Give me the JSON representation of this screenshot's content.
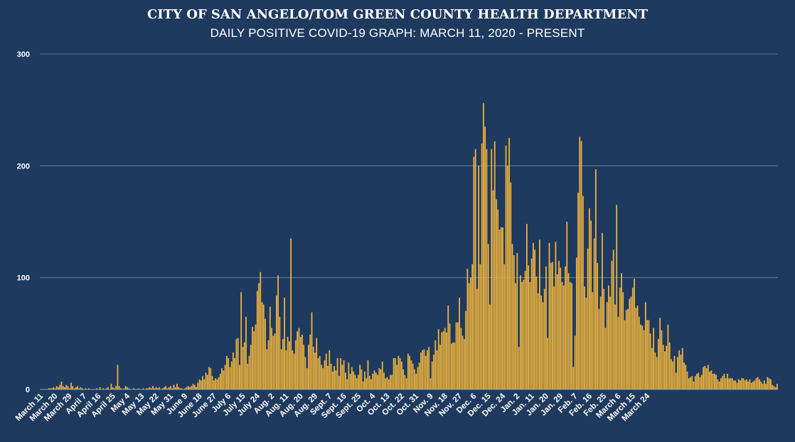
{
  "chart_data": {
    "type": "bar",
    "title": "CITY OF SAN ANGELO/TOM GREEN COUNTY HEALTH DEPARTMENT",
    "subtitle": "DAILY POSITIVE COVID-19 GRAPH: MARCH 11, 2020 - PRESENT",
    "xlabel": "",
    "ylabel": "",
    "ylim": [
      0,
      300
    ],
    "yticks": [
      0,
      100,
      200,
      300
    ],
    "grid": true,
    "legend": "none",
    "bar_color": "#f2b53c",
    "background_color": "#1f3a5f",
    "x_tick_labels": [
      "March 11",
      "March 20",
      "March 29",
      "April 7",
      "April 16",
      "April 25",
      "May 4",
      "May 13",
      "May 22",
      "May 31",
      "June 9",
      "June 18",
      "June 27",
      "July 6",
      "July 15",
      "July 24",
      "Aug. 2",
      "Aug. 11",
      "Aug. 20",
      "Aug. 29",
      "Sept. 7",
      "Sept. 16",
      "Sept. 25",
      "Oct. 4",
      "Oct. 13",
      "Oct. 22",
      "Oct. 31",
      "Nov. 9",
      "Nov. 18",
      "Nov. 27",
      "Dec. 6",
      "Dec. 15",
      "Dec. 24",
      "Jan. 2",
      "Jan. 11",
      "Jan. 20",
      "Jan. 29",
      "Feb. 7",
      "Feb. 16",
      "Feb. 25",
      "March 6",
      "March 15",
      "March 24"
    ],
    "segments": [
      [
        0,
        0,
        0,
        0,
        0,
        1,
        1,
        1,
        2,
        1,
        3,
        2,
        4,
        7,
        3,
        2,
        4,
        3,
        1,
        6,
        3,
        1,
        2,
        3,
        1,
        2,
        1,
        0,
        1,
        0
      ],
      [
        1,
        0,
        0,
        0,
        0,
        1,
        0,
        2,
        0,
        1,
        0,
        1,
        2,
        0,
        5,
        2,
        1,
        3,
        22,
        3,
        1,
        0,
        1,
        3,
        2,
        1,
        0,
        0,
        1,
        0
      ],
      [
        0,
        1,
        0,
        0,
        1,
        0,
        1,
        1,
        2,
        1,
        3,
        1,
        2,
        1,
        2,
        0,
        1,
        2,
        3,
        1,
        2,
        3,
        1,
        4,
        2,
        5,
        2,
        1,
        1,
        0
      ],
      [
        1,
        2,
        3,
        2,
        3,
        5,
        4,
        2,
        6,
        9,
        8,
        12,
        9,
        15,
        13,
        20,
        19,
        12,
        8,
        10,
        9,
        11,
        14,
        19,
        17,
        22,
        30,
        28,
        20,
        25
      ],
      [
        33,
        28,
        45,
        46,
        22,
        87,
        38,
        42,
        65,
        23,
        30,
        40,
        56,
        52,
        58,
        88,
        95,
        105,
        78,
        76,
        63,
        36,
        44,
        74,
        55,
        48,
        50,
        84,
        102,
        65
      ],
      [
        36,
        45,
        82,
        35,
        47,
        43,
        135,
        35,
        32,
        44,
        52,
        55,
        47,
        49,
        40,
        29,
        19,
        40,
        49,
        69,
        38,
        33,
        46,
        28,
        30,
        22,
        19,
        26,
        32,
        21
      ],
      [
        35,
        23,
        16,
        21,
        17,
        28,
        12,
        28,
        22,
        26,
        15,
        9,
        24,
        14,
        20,
        16,
        13,
        10,
        13,
        22,
        18,
        7,
        16,
        10,
        26,
        12,
        9,
        14,
        17,
        15
      ],
      [
        13,
        19,
        18,
        25,
        15,
        10,
        11,
        9,
        13,
        13,
        28,
        28,
        22,
        30,
        28,
        25,
        18,
        13,
        10,
        32,
        30,
        26,
        23,
        18,
        14,
        20,
        24,
        33,
        35,
        36
      ],
      [
        30,
        35,
        38,
        10,
        25,
        31,
        44,
        35,
        54,
        40,
        51,
        52,
        55,
        51,
        75,
        59,
        41,
        42,
        42,
        60,
        60,
        82,
        55,
        48,
        45,
        70,
        108,
        95,
        100,
        112
      ],
      [
        208,
        215,
        90,
        200,
        112,
        220,
        256,
        235,
        215,
        130,
        76,
        215,
        178,
        222,
        170,
        161,
        143,
        145,
        145,
        112,
        218,
        200,
        225,
        185,
        130,
        120,
        95,
        122,
        38,
        102
      ],
      [
        96,
        98,
        106,
        148,
        111,
        96,
        117,
        131,
        125,
        101,
        86,
        134,
        84,
        78,
        90,
        110,
        46,
        131,
        113,
        114,
        92,
        132,
        103,
        115,
        109,
        96,
        93,
        110,
        150,
        104
      ],
      [
        96,
        95,
        20,
        48,
        118,
        176,
        226,
        222,
        173,
        92,
        82,
        126,
        162,
        151,
        87,
        135,
        197,
        113,
        72,
        83,
        140,
        90,
        55,
        78,
        93,
        83,
        115,
        125,
        76,
        165
      ],
      [
        65,
        91,
        104,
        87,
        62,
        71,
        72,
        81,
        83,
        91,
        99,
        73,
        75,
        65,
        58,
        57,
        53,
        78,
        62,
        62,
        50,
        37,
        55,
        33,
        29,
        45,
        64,
        53,
        40,
        34
      ],
      [
        39,
        58,
        42,
        27,
        25,
        30,
        15,
        29,
        35,
        31,
        37,
        24,
        22,
        16,
        10,
        11,
        12,
        7,
        12,
        14,
        15,
        11,
        13,
        20,
        21,
        19,
        22,
        16,
        17,
        14
      ],
      [
        14,
        13,
        9,
        7,
        10,
        12,
        14,
        10,
        14,
        10,
        10,
        10,
        8,
        8,
        6,
        9,
        8,
        10,
        10,
        8,
        9,
        7,
        9,
        6,
        7,
        8,
        10,
        11,
        9,
        7
      ],
      [
        5,
        8,
        5,
        11,
        10,
        9,
        4,
        3,
        2,
        5
      ]
    ]
  }
}
